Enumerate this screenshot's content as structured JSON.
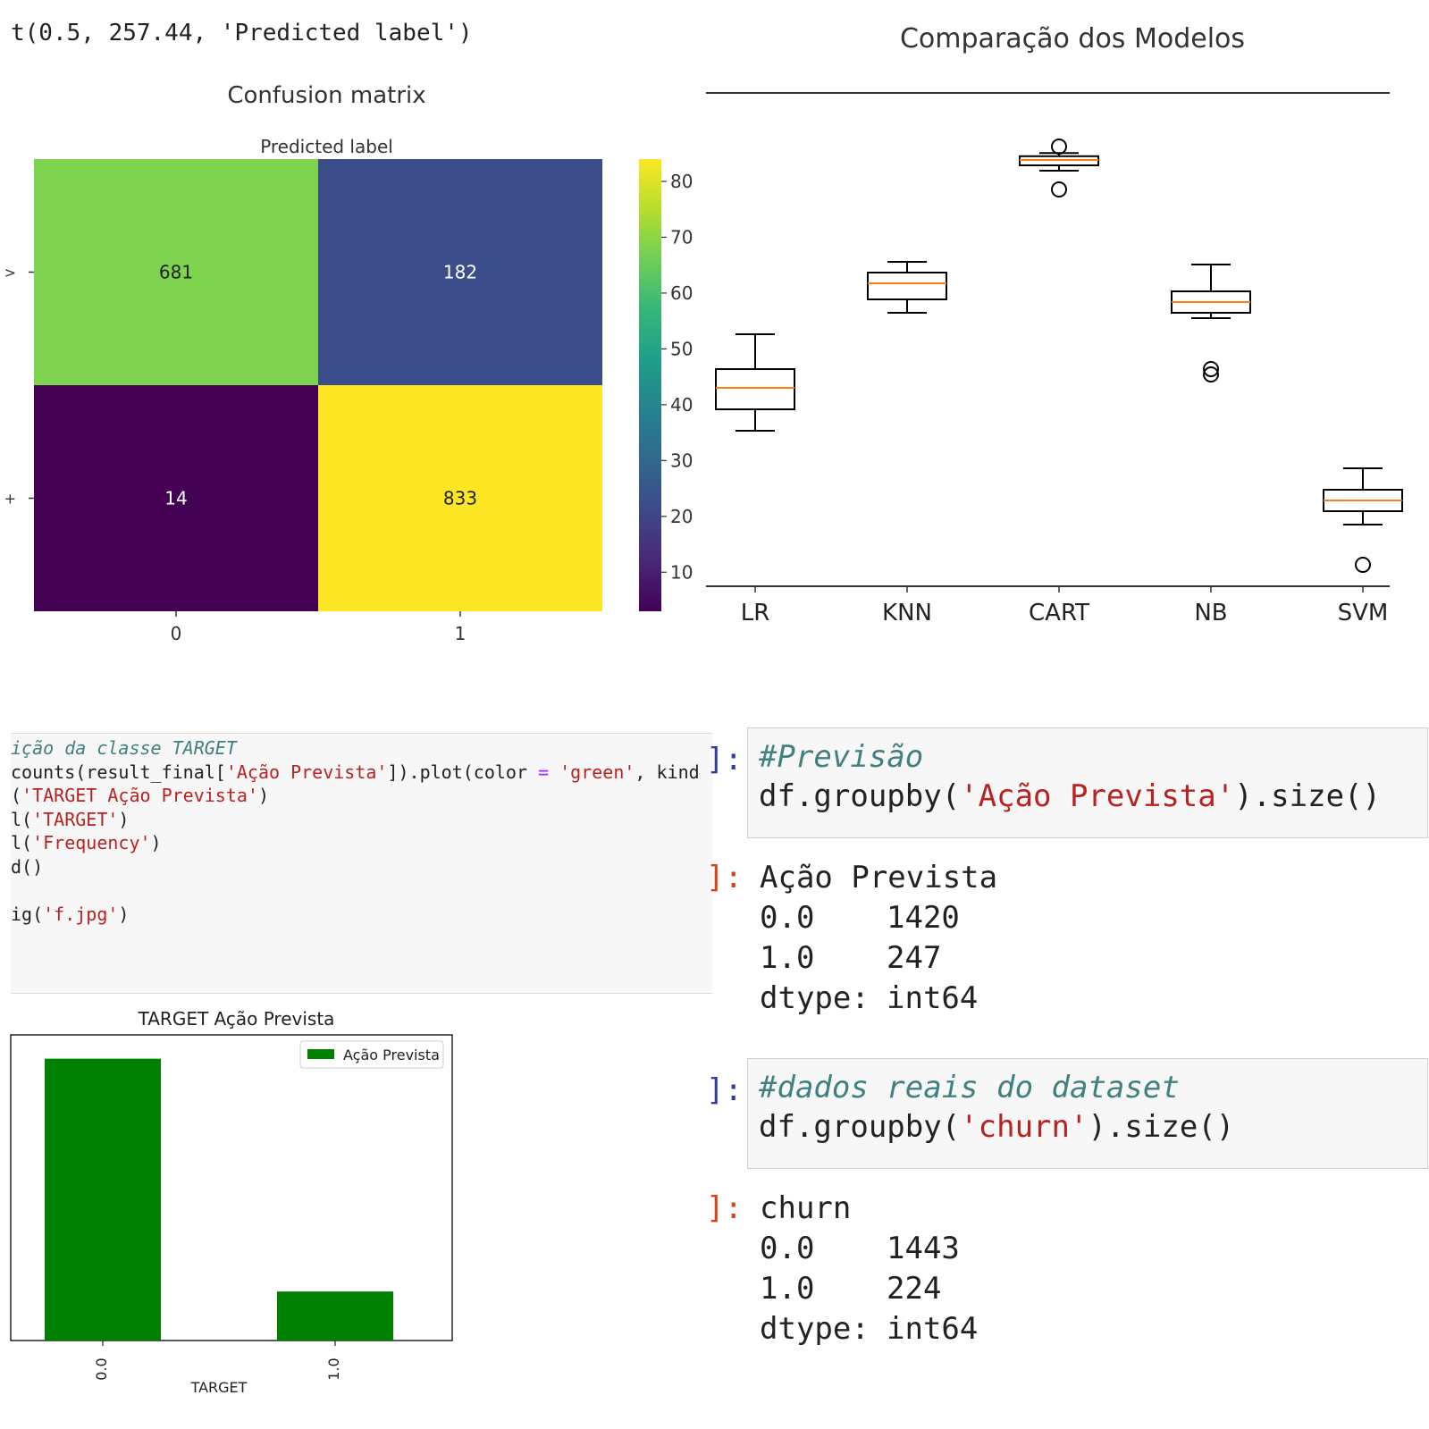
{
  "caption": "t(0.5, 257.44, 'Predicted label')",
  "chart_data": [
    {
      "type": "heatmap",
      "title": "Confusion matrix",
      "xlabel": "Predicted label",
      "x_ticks": [
        "0",
        "1"
      ],
      "y_ticks": [
        ">",
        "+"
      ],
      "cells": [
        [
          681,
          182
        ],
        [
          14,
          833
        ]
      ],
      "colormap": "viridis",
      "colorbar_ticks": [
        "10",
        "20",
        "30",
        "40",
        "50",
        "60",
        "70",
        "80"
      ],
      "colorbar_range": [
        3,
        84
      ],
      "cell_colors": [
        "#7ed34f",
        "#3b4d8a",
        "#440154",
        "#fde725"
      ]
    },
    {
      "type": "box",
      "title": "Comparação dos Modelos",
      "categories": [
        "LR",
        "KNN",
        "CART",
        "NB",
        "SVM"
      ],
      "boxes": [
        {
          "whisker_low": 37,
          "q1": 41,
          "median": 45,
          "q3": 48.5,
          "whisker_high": 55,
          "outliers": []
        },
        {
          "whisker_low": 59,
          "q1": 61.5,
          "median": 64.5,
          "q3": 66.5,
          "whisker_high": 68.5,
          "outliers": []
        },
        {
          "whisker_low": 85.5,
          "q1": 86.5,
          "median": 87.5,
          "q3": 88.2,
          "whisker_high": 88.8,
          "outliers": [
            90,
            82
          ]
        },
        {
          "whisker_low": 58,
          "q1": 59,
          "median": 61,
          "q3": 63,
          "whisker_high": 68,
          "outliers": [
            47.5,
            48.5
          ]
        },
        {
          "whisker_low": 19.5,
          "q1": 22,
          "median": 24,
          "q3": 26,
          "whisker_high": 30,
          "outliers": [
            12
          ]
        }
      ],
      "ylim": [
        8,
        100
      ],
      "box_color": "#000000",
      "median_color": "#ff7f0e"
    },
    {
      "type": "bar",
      "title": "TARGET Ação Prevista",
      "xlabel": "TARGET",
      "categories": [
        "0.0",
        "1.0"
      ],
      "series": [
        {
          "name": "Ação Prevista",
          "values": [
            1420,
            247
          ]
        }
      ],
      "ylim": [
        0,
        1540
      ],
      "color": "#008000",
      "legend": "top-right"
    }
  ],
  "code_cell": {
    "lines": [
      [
        {
          "t": "ição da classe TARGET",
          "c": "comment"
        }
      ],
      [
        {
          "t": "counts(result_final[",
          "c": ""
        },
        {
          "t": "'Ação Prevista'",
          "c": "string"
        },
        {
          "t": "]).plot(color ",
          "c": ""
        },
        {
          "t": "=",
          "c": "op"
        },
        {
          "t": " ",
          "c": ""
        },
        {
          "t": "'green'",
          "c": "string"
        },
        {
          "t": ", kind",
          "c": ""
        }
      ],
      [
        {
          "t": "(",
          "c": ""
        },
        {
          "t": "'TARGET Ação Prevista'",
          "c": "string"
        },
        {
          "t": ")",
          "c": ""
        }
      ],
      [
        {
          "t": "l(",
          "c": ""
        },
        {
          "t": "'TARGET'",
          "c": "string"
        },
        {
          "t": ")",
          "c": ""
        }
      ],
      [
        {
          "t": "l(",
          "c": ""
        },
        {
          "t": "'Frequency'",
          "c": "string"
        },
        {
          "t": ")",
          "c": ""
        }
      ],
      [
        {
          "t": "d()",
          "c": ""
        }
      ],
      [
        {
          "t": "",
          "c": ""
        }
      ],
      [
        {
          "t": "ig(",
          "c": ""
        },
        {
          "t": "'f.jpg'",
          "c": "string"
        },
        {
          "t": ")",
          "c": ""
        }
      ]
    ]
  },
  "cells": [
    {
      "in_prompt": "]:",
      "comment": "#Previsão",
      "code_before": "df.groupby(",
      "code_string": "'Ação Prevista'",
      "code_after": ").size()",
      "out_prompt": "]:",
      "out_header": "Ação Prevista",
      "out_rows": [
        {
          "k": "0.0",
          "v": "1420"
        },
        {
          "k": "1.0",
          "v": "247"
        }
      ],
      "out_dtype_label": "dtype:",
      "out_dtype": "int64"
    },
    {
      "in_prompt": "]:",
      "comment": "#dados reais do dataset",
      "code_before": "df.groupby(",
      "code_string": "'churn'",
      "code_after": ").size()",
      "out_prompt": "]:",
      "out_header": "churn",
      "out_rows": [
        {
          "k": "0.0",
          "v": "1443"
        },
        {
          "k": "1.0",
          "v": "224"
        }
      ],
      "out_dtype_label": "dtype:",
      "out_dtype": "int64"
    }
  ]
}
